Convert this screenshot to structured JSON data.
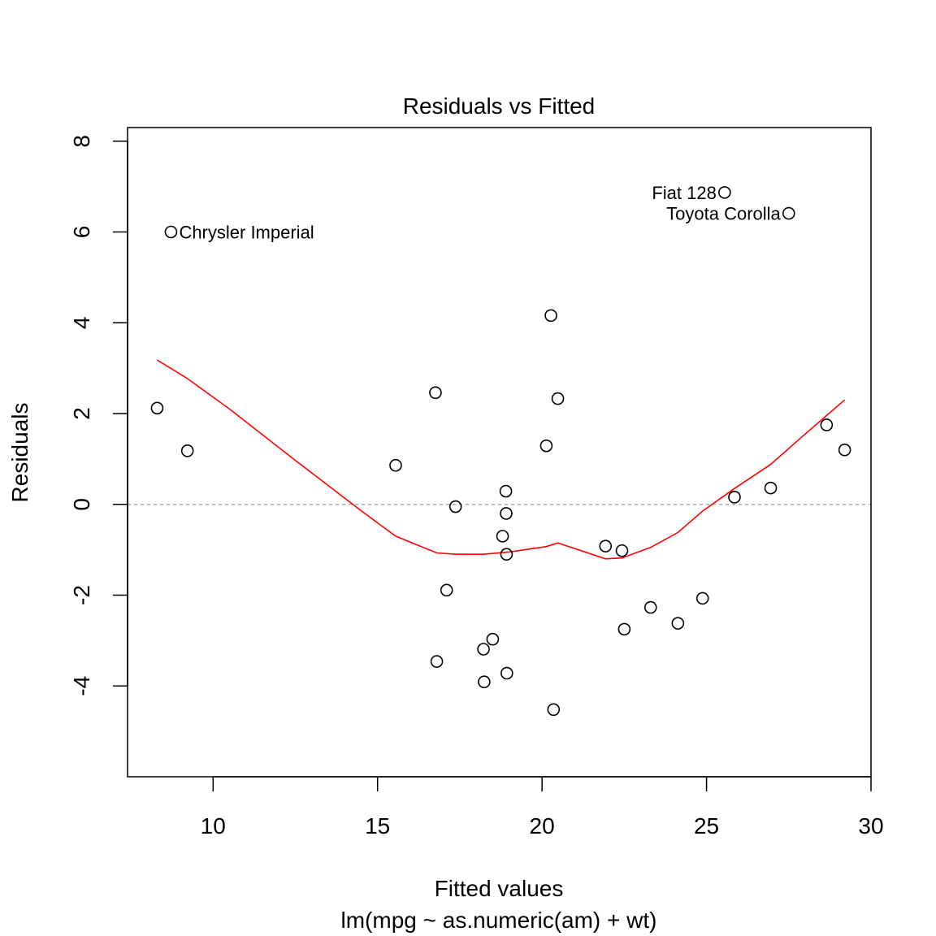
{
  "chart_data": {
    "type": "scatter",
    "title": "Residuals vs Fitted",
    "xlabel": "Fitted values",
    "subtitle": "lm(mpg ~ as.numeric(am) + wt)",
    "ylabel": "Residuals",
    "xlim": [
      7.4,
      30.0
    ],
    "ylim": [
      -6.0,
      8.3
    ],
    "x_ticks": [
      10,
      15,
      20,
      25,
      30
    ],
    "y_ticks": [
      -4,
      -2,
      0,
      2,
      4,
      6,
      8
    ],
    "reference_line": {
      "y": 0,
      "style": "dashed",
      "color": "#aaaaaa"
    },
    "points": [
      {
        "x": 8.3,
        "y": 2.12
      },
      {
        "x": 8.72,
        "y": 6.0,
        "label": "Chrysler Imperial"
      },
      {
        "x": 9.22,
        "y": 1.18
      },
      {
        "x": 15.55,
        "y": 0.86
      },
      {
        "x": 16.76,
        "y": 2.46
      },
      {
        "x": 16.8,
        "y": -3.46
      },
      {
        "x": 17.1,
        "y": -1.89
      },
      {
        "x": 17.37,
        "y": -0.05
      },
      {
        "x": 18.22,
        "y": -3.19
      },
      {
        "x": 18.24,
        "y": -3.91
      },
      {
        "x": 18.5,
        "y": -2.97
      },
      {
        "x": 18.8,
        "y": -0.7
      },
      {
        "x": 18.9,
        "y": 0.29
      },
      {
        "x": 18.91,
        "y": -0.2
      },
      {
        "x": 18.92,
        "y": -1.1
      },
      {
        "x": 18.93,
        "y": -3.72
      },
      {
        "x": 20.13,
        "y": 1.29
      },
      {
        "x": 20.27,
        "y": 4.16
      },
      {
        "x": 20.35,
        "y": -4.52
      },
      {
        "x": 20.48,
        "y": 2.33
      },
      {
        "x": 21.93,
        "y": -0.92
      },
      {
        "x": 22.43,
        "y": -1.02
      },
      {
        "x": 22.5,
        "y": -2.75
      },
      {
        "x": 23.3,
        "y": -2.27
      },
      {
        "x": 24.13,
        "y": -2.62
      },
      {
        "x": 24.88,
        "y": -2.07
      },
      {
        "x": 25.55,
        "y": 6.87,
        "label": "Fiat 128",
        "label_side": "left"
      },
      {
        "x": 25.85,
        "y": 0.16
      },
      {
        "x": 26.95,
        "y": 0.36
      },
      {
        "x": 27.5,
        "y": 6.41,
        "label": "Toyota Corolla",
        "label_side": "left"
      },
      {
        "x": 28.65,
        "y": 1.75
      },
      {
        "x": 29.2,
        "y": 1.2
      }
    ],
    "smoother": {
      "color": "#ff0000",
      "x": [
        8.3,
        9.2,
        10.5,
        12.5,
        14.5,
        15.55,
        16.8,
        17.4,
        18.2,
        19.0,
        20.13,
        20.48,
        21.93,
        22.43,
        23.3,
        24.13,
        24.88,
        25.85,
        26.95,
        28.0,
        29.2
      ],
      "y": [
        3.18,
        2.78,
        2.1,
        0.97,
        -0.14,
        -0.7,
        -1.07,
        -1.1,
        -1.1,
        -1.05,
        -0.93,
        -0.85,
        -1.2,
        -1.18,
        -0.95,
        -0.62,
        -0.15,
        0.35,
        0.88,
        1.55,
        2.3
      ]
    }
  }
}
